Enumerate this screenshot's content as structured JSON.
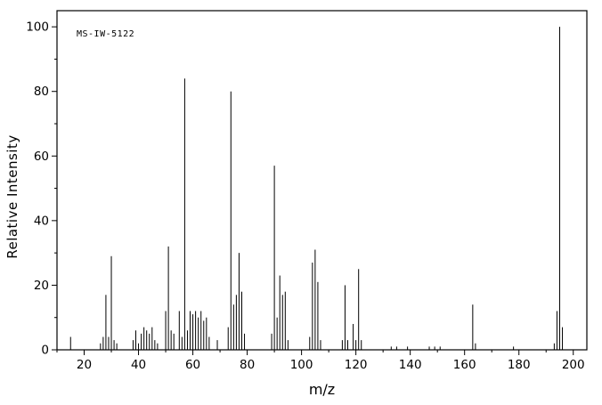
{
  "figure": {
    "sample_label": "MS-IW-5122",
    "xlabel": "m/z",
    "ylabel": "Relative Intensity"
  },
  "chart_data": {
    "type": "bar",
    "title": "MS-IW-5122",
    "xlabel": "m/z",
    "ylabel": "Relative Intensity",
    "xlim": [
      10,
      205
    ],
    "ylim": [
      0,
      105
    ],
    "x_major_ticks": [
      20,
      40,
      60,
      80,
      100,
      120,
      140,
      160,
      180,
      200
    ],
    "x_minor_step": 10,
    "y_major_ticks": [
      0,
      20,
      40,
      60,
      80,
      100
    ],
    "y_minor_step": 10,
    "grid": false,
    "legend": false,
    "bar_color": "#000000",
    "frame_color": "#000000",
    "peaks": [
      [
        15,
        4
      ],
      [
        26,
        2
      ],
      [
        27,
        4
      ],
      [
        28,
        17
      ],
      [
        29,
        4
      ],
      [
        30,
        29
      ],
      [
        31,
        3
      ],
      [
        32,
        2
      ],
      [
        38,
        3
      ],
      [
        39,
        6
      ],
      [
        40,
        2
      ],
      [
        41,
        5
      ],
      [
        42,
        7
      ],
      [
        43,
        6
      ],
      [
        44,
        5
      ],
      [
        45,
        7
      ],
      [
        46,
        3
      ],
      [
        47,
        2
      ],
      [
        50,
        12
      ],
      [
        51,
        32
      ],
      [
        52,
        6
      ],
      [
        53,
        5
      ],
      [
        55,
        12
      ],
      [
        56,
        4
      ],
      [
        57,
        84
      ],
      [
        58,
        6
      ],
      [
        59,
        12
      ],
      [
        60,
        11
      ],
      [
        61,
        12
      ],
      [
        62,
        10
      ],
      [
        63,
        12
      ],
      [
        64,
        9
      ],
      [
        65,
        10
      ],
      [
        66,
        4
      ],
      [
        69,
        3
      ],
      [
        73,
        7
      ],
      [
        74,
        80
      ],
      [
        75,
        14
      ],
      [
        76,
        17
      ],
      [
        77,
        30
      ],
      [
        78,
        18
      ],
      [
        79,
        5
      ],
      [
        89,
        5
      ],
      [
        90,
        57
      ],
      [
        91,
        10
      ],
      [
        92,
        23
      ],
      [
        93,
        17
      ],
      [
        94,
        18
      ],
      [
        95,
        3
      ],
      [
        103,
        4
      ],
      [
        104,
        27
      ],
      [
        105,
        31
      ],
      [
        106,
        21
      ],
      [
        107,
        3
      ],
      [
        115,
        3
      ],
      [
        116,
        20
      ],
      [
        117,
        3
      ],
      [
        119,
        8
      ],
      [
        120,
        3
      ],
      [
        121,
        25
      ],
      [
        122,
        3
      ],
      [
        133,
        1
      ],
      [
        135,
        1
      ],
      [
        139,
        1
      ],
      [
        147,
        1
      ],
      [
        149,
        1
      ],
      [
        151,
        1
      ],
      [
        163,
        14
      ],
      [
        164,
        2
      ],
      [
        178,
        1
      ],
      [
        193,
        2
      ],
      [
        194,
        12
      ],
      [
        195,
        100
      ],
      [
        196,
        7
      ]
    ]
  }
}
